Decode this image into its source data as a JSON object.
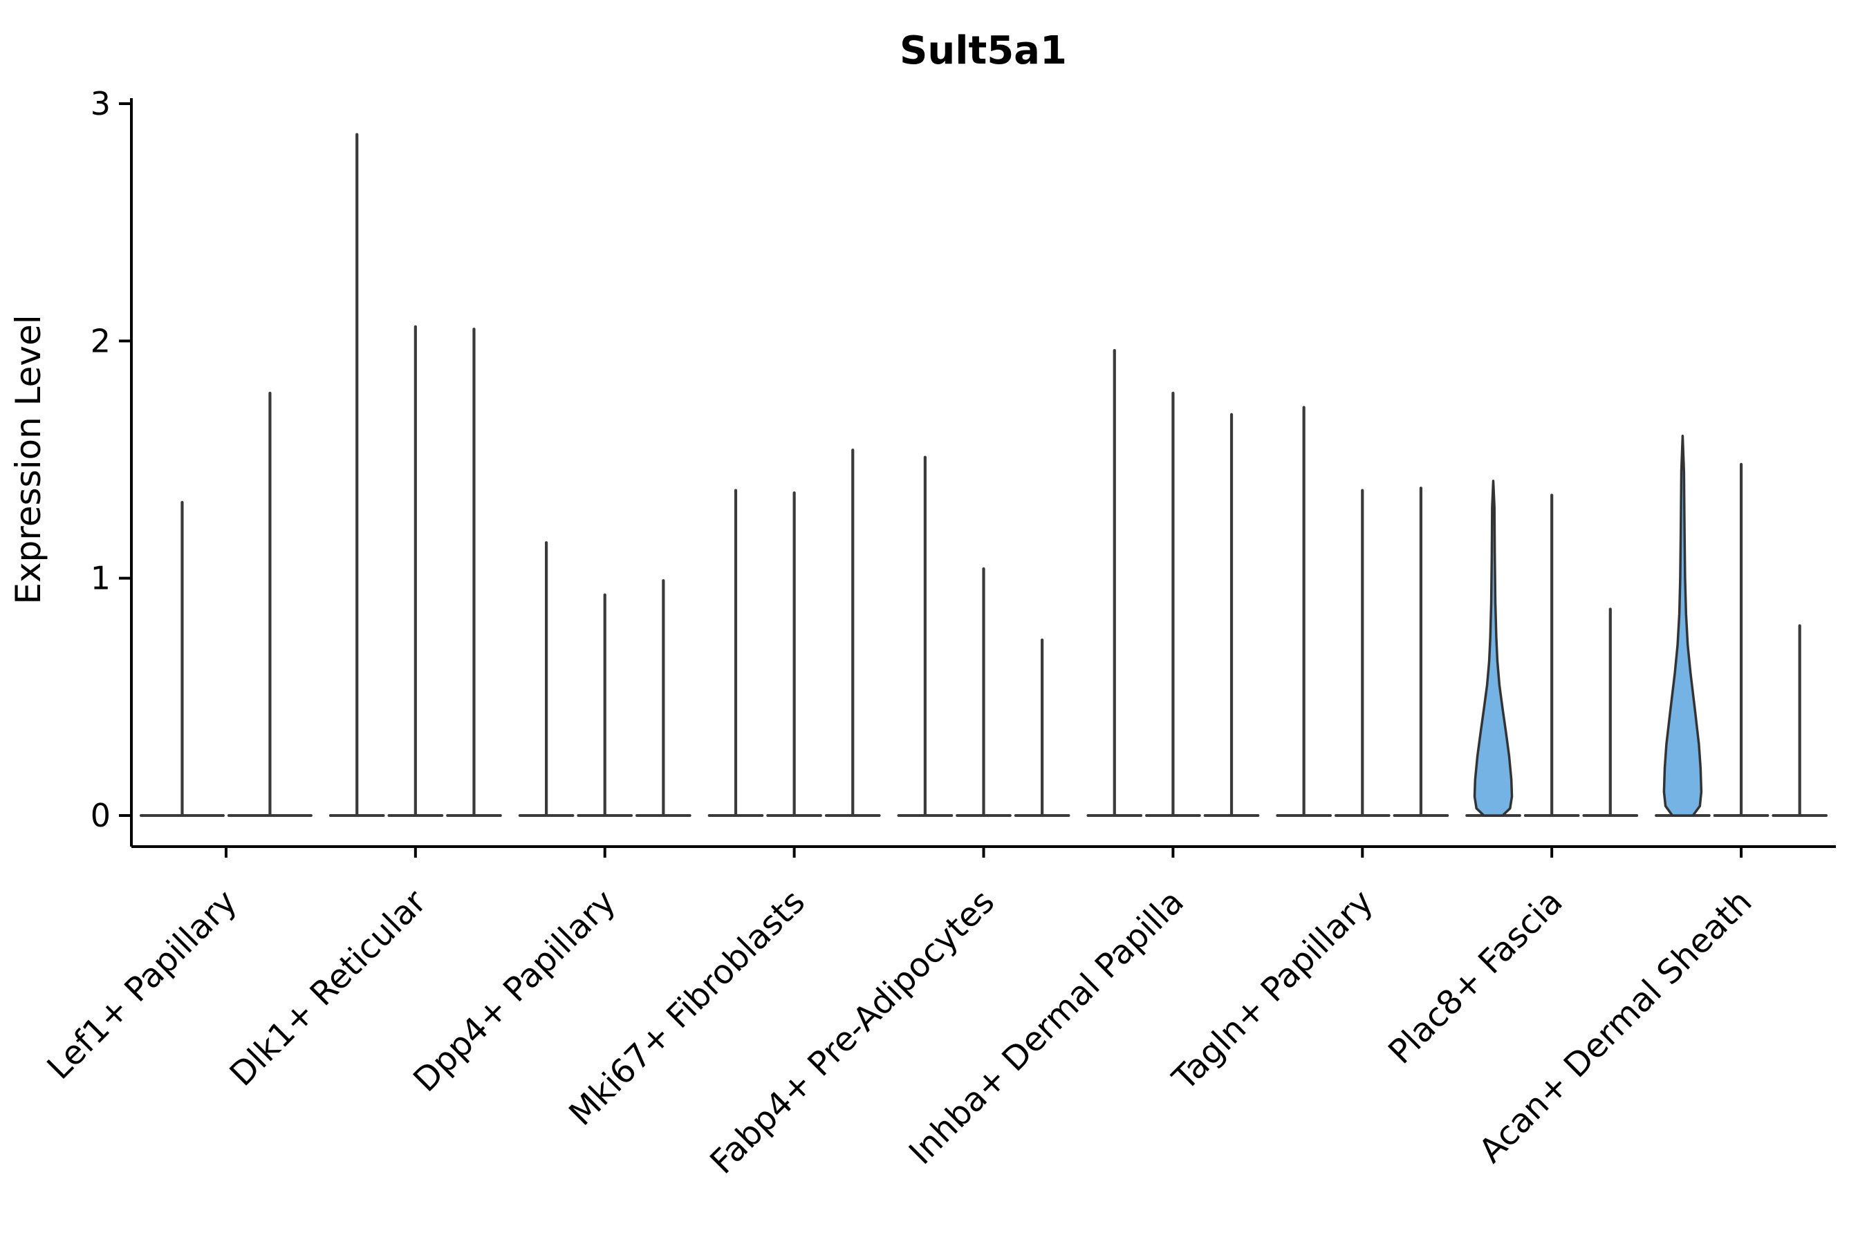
{
  "figure": {
    "title": "Sult5a1",
    "ylabel": "Expression Level"
  },
  "chart_data": {
    "type": "violin",
    "title": "Sult5a1",
    "xlabel": "",
    "ylabel": "Expression Level",
    "ylim": [
      0,
      3
    ],
    "yticks": [
      0,
      1,
      2,
      3
    ],
    "legend": "none",
    "grid": false,
    "colors": {
      "spike": "#3a3a3a",
      "outline": "#333333",
      "highlight_fill": "#74b3e3",
      "axis": "#000000"
    },
    "groups": [
      {
        "label": "Lef1+ Papillary",
        "violins": [
          {
            "max": 1.32,
            "shape": "spike"
          },
          {
            "max": 1.78,
            "shape": "spike"
          }
        ]
      },
      {
        "label": "Dlk1+ Reticular",
        "violins": [
          {
            "max": 2.87,
            "shape": "spike"
          },
          {
            "max": 2.06,
            "shape": "spike"
          },
          {
            "max": 2.05,
            "shape": "spike"
          }
        ]
      },
      {
        "label": "Dpp4+ Papillary",
        "violins": [
          {
            "max": 1.15,
            "shape": "spike"
          },
          {
            "max": 0.93,
            "shape": "spike"
          },
          {
            "max": 0.99,
            "shape": "spike"
          }
        ]
      },
      {
        "label": "Mki67+ Fibroblasts",
        "violins": [
          {
            "max": 1.37,
            "shape": "spike"
          },
          {
            "max": 1.36,
            "shape": "spike"
          },
          {
            "max": 1.54,
            "shape": "spike"
          }
        ]
      },
      {
        "label": "Fabp4+ Pre-Adipocytes",
        "violins": [
          {
            "max": 1.51,
            "shape": "spike"
          },
          {
            "max": 1.04,
            "shape": "spike"
          },
          {
            "max": 0.74,
            "shape": "spike"
          }
        ]
      },
      {
        "label": "Inhba+ Dermal Papilla",
        "violins": [
          {
            "max": 1.96,
            "shape": "spike"
          },
          {
            "max": 1.78,
            "shape": "spike"
          },
          {
            "max": 1.69,
            "shape": "spike"
          }
        ]
      },
      {
        "label": "Tagln+ Papillary",
        "violins": [
          {
            "max": 1.72,
            "shape": "spike"
          },
          {
            "max": 1.37,
            "shape": "spike"
          },
          {
            "max": 1.38,
            "shape": "spike"
          }
        ]
      },
      {
        "label": "Plac8+ Fascia",
        "violins": [
          {
            "max": 1.41,
            "shape": "violin",
            "profile": [
              [
                0,
                0.5
              ],
              [
                0.03,
                0.9
              ],
              [
                0.08,
                1.0
              ],
              [
                0.15,
                0.97
              ],
              [
                0.25,
                0.85
              ],
              [
                0.35,
                0.68
              ],
              [
                0.45,
                0.5
              ],
              [
                0.55,
                0.33
              ],
              [
                0.65,
                0.22
              ],
              [
                0.75,
                0.16
              ],
              [
                0.9,
                0.11
              ],
              [
                1.1,
                0.08
              ],
              [
                1.3,
                0.06
              ],
              [
                1.41,
                0.0
              ]
            ]
          },
          {
            "max": 1.35,
            "shape": "spike"
          },
          {
            "max": 0.87,
            "shape": "spike"
          }
        ]
      },
      {
        "label": "Acan+ Dermal Sheath",
        "violins": [
          {
            "max": 1.6,
            "shape": "violin",
            "profile": [
              [
                0,
                0.55
              ],
              [
                0.04,
                0.92
              ],
              [
                0.1,
                1.0
              ],
              [
                0.2,
                0.96
              ],
              [
                0.3,
                0.87
              ],
              [
                0.45,
                0.65
              ],
              [
                0.6,
                0.42
              ],
              [
                0.72,
                0.27
              ],
              [
                0.85,
                0.18
              ],
              [
                1.0,
                0.13
              ],
              [
                1.2,
                0.1
              ],
              [
                1.45,
                0.07
              ],
              [
                1.6,
                0.0
              ]
            ]
          },
          {
            "max": 1.48,
            "shape": "spike"
          },
          {
            "max": 0.8,
            "shape": "spike"
          }
        ]
      }
    ]
  }
}
